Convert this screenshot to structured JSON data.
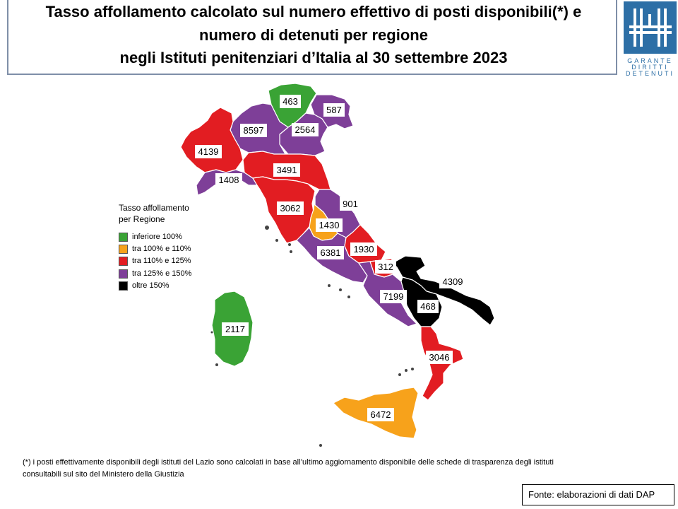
{
  "title": {
    "line1": "Tasso affollamento calcolato sul numero effettivo di posti disponibili(*) e",
    "line2": "numero di detenuti per regione",
    "line3": "negli Istituti penitenziari d’Italia al 30 settembre 2023"
  },
  "logo": {
    "line1": "GARANTE",
    "line2": "DIRITTI",
    "line3": "DETENUTI"
  },
  "colors": {
    "under_100": "#3aa335",
    "100_110": "#f7a21b",
    "110_125": "#e21d22",
    "125_150": "#7e3f98",
    "over_150": "#000000"
  },
  "legend": {
    "title_line1": "Tasso affollamento",
    "title_line2": "per Regione",
    "items": [
      {
        "label": "inferiore 100%",
        "color": "#3aa335"
      },
      {
        "label": "tra 100% e 110%",
        "color": "#f7a21b"
      },
      {
        "label": "tra 110% e 125%",
        "color": "#e21d22"
      },
      {
        "label": "tra 125% e 150%",
        "color": "#7e3f98"
      },
      {
        "label": "oltre 150%",
        "color": "#000000"
      }
    ]
  },
  "regions": [
    {
      "id": "trentino",
      "value": "463",
      "class": "inferiore 100%"
    },
    {
      "id": "lombardia",
      "value": "8597",
      "class": "tra 125% e 150%"
    },
    {
      "id": "veneto",
      "value": "2564",
      "class": "tra 125% e 150%"
    },
    {
      "id": "friuli",
      "value": "587",
      "class": "tra 125% e 150%"
    },
    {
      "id": "piemonte",
      "value": "4139",
      "class": "tra 110% e 125%"
    },
    {
      "id": "liguria",
      "value": "1408",
      "class": "tra 125% e 150%"
    },
    {
      "id": "emilia",
      "value": "3491",
      "class": "tra 110% e 125%"
    },
    {
      "id": "toscana",
      "value": "3062",
      "class": "tra 110% e 125%"
    },
    {
      "id": "marche",
      "value": "901",
      "class": "tra 125% e 150%"
    },
    {
      "id": "umbria",
      "value": "1430",
      "class": "tra 100% e 110%"
    },
    {
      "id": "lazio",
      "value": "6381",
      "class": "tra 125% e 150%"
    },
    {
      "id": "abruzzo",
      "value": "1930",
      "class": "tra 110% e 125%"
    },
    {
      "id": "molise",
      "value": "312",
      "class": "tra 110% e 125%"
    },
    {
      "id": "campania",
      "value": "7199",
      "class": "tra 125% e 150%"
    },
    {
      "id": "puglia",
      "value": "4309",
      "class": "oltre 150%"
    },
    {
      "id": "basilicata",
      "value": "468",
      "class": "oltre 150%"
    },
    {
      "id": "calabria",
      "value": "3046",
      "class": "tra 110% e 125%"
    },
    {
      "id": "sicilia",
      "value": "6472",
      "class": "tra 100% e 110%"
    },
    {
      "id": "sardegna",
      "value": "2117",
      "class": "inferiore 100%"
    }
  ],
  "footnote": {
    "line1": "(*) i posti effettivamente disponibili  degli istituti del Lazio sono calcolati in base all’ultimo aggiornamento disponibile  delle schede di trasparenza degli istituti",
    "line2": "consultabili sul sito del Ministero della Giustizia"
  },
  "source": "Fonte: elaborazioni di dati DAP"
}
